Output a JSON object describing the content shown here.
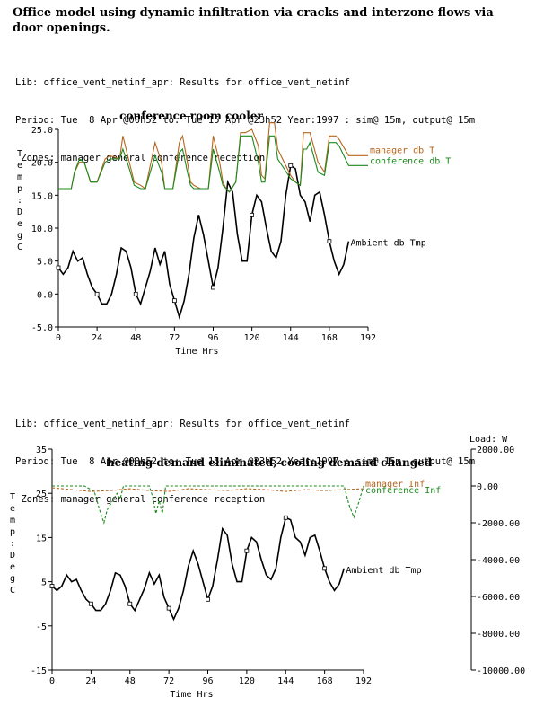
{
  "title": "Office model using dynamic infiltration via cracks and interzone flows via door openings.",
  "info_top": {
    "lib": "Lib: office_vent_netinf_apr: Results for office_vent_netinf",
    "period": "Period: Tue  8 Apr @00h52 to: Tue 15 Apr @23h52 Year:1997 : sim@ 15m, output@ 15m",
    "zones": " Zones: manager general conference reception"
  },
  "info_bottom": {
    "lib": "Lib: office_vent_netinf_apr: Results for office_vent_netinf",
    "period": "Period: Tue  8 Apr @00h52 to: Tue 15 Apr @23h52 Year:1997 : sim@ 15m, output@ 15m",
    "zones": " Zones: manager general conference reception"
  },
  "colors": {
    "ambient": "#000000",
    "manager": "#b5651d",
    "conference": "#1a8a1a",
    "general": "#1f3fbf",
    "reception": "#f0c040"
  },
  "chart_data": [
    {
      "type": "line",
      "title": "conference room cooler",
      "xlabel": "Time Hrs",
      "ylabel": "Temp: DegC",
      "xlim": [
        0,
        192
      ],
      "ylim": [
        -5,
        25
      ],
      "xticks": [
        "0",
        "24",
        "48",
        "72",
        "96",
        "120",
        "144",
        "168",
        "192"
      ],
      "yticks": [
        "-5.0",
        "0.0",
        "5.0",
        "10.0",
        "15.0",
        "20.0",
        "25.0"
      ],
      "series": [
        {
          "name": "Ambient db Tmp",
          "color": "#000000",
          "x": [
            0,
            3,
            6,
            9,
            12,
            15,
            18,
            21,
            24,
            27,
            30,
            33,
            36,
            39,
            42,
            45,
            48,
            51,
            54,
            57,
            60,
            63,
            66,
            69,
            72,
            75,
            78,
            81,
            84,
            87,
            90,
            93,
            96,
            99,
            102,
            105,
            108,
            111,
            114,
            117,
            120,
            123,
            126,
            129,
            132,
            135,
            138,
            141,
            144,
            147,
            150,
            153,
            156,
            159,
            162,
            165,
            168,
            171,
            174,
            177,
            180
          ],
          "y": [
            4,
            3,
            4,
            6.5,
            5,
            5.5,
            3,
            1,
            0,
            -1.5,
            -1.5,
            0,
            3,
            7,
            6.5,
            4,
            0,
            -1.5,
            1,
            3.5,
            7,
            4.5,
            6.5,
            1.5,
            -1,
            -3.5,
            -1,
            3,
            8.5,
            12,
            9,
            5,
            1,
            4,
            10,
            17,
            15.5,
            9,
            5,
            5,
            12,
            15,
            14,
            10,
            6.5,
            5.5,
            8,
            15,
            19.5,
            19,
            15,
            14,
            11,
            15,
            15.5,
            12,
            8,
            5,
            3,
            4.5,
            8
          ]
        },
        {
          "name": "manager db T",
          "color": "#b5651d",
          "x": [
            0,
            5,
            8,
            10,
            13,
            16,
            20,
            24,
            29,
            32,
            38,
            40,
            44,
            47,
            51,
            54,
            60,
            64,
            66,
            71,
            75,
            77,
            80,
            82,
            84,
            88,
            93,
            96,
            100,
            102,
            104,
            106,
            110,
            113,
            116,
            120,
            124,
            126,
            128,
            131,
            134,
            136,
            140,
            144,
            147,
            150,
            152,
            154,
            156,
            161,
            165,
            168,
            172,
            174,
            180,
            186,
            192
          ],
          "y": [
            16,
            16,
            16,
            18.5,
            20,
            20,
            17,
            17,
            20.5,
            21,
            20.5,
            24,
            20,
            17,
            16.5,
            16,
            23,
            20,
            16,
            16,
            23,
            24,
            20,
            17,
            16.5,
            16,
            16,
            24,
            20,
            17,
            16,
            15.5,
            17,
            24.5,
            24.5,
            25,
            22.5,
            18,
            17.5,
            26,
            26,
            22,
            20,
            18,
            17,
            16.5,
            24.5,
            24.5,
            24.5,
            20,
            18.5,
            24,
            24,
            23.5,
            21,
            21,
            21
          ]
        },
        {
          "name": "conference db T",
          "color": "#1a8a1a",
          "x": [
            0,
            5,
            8,
            10,
            13,
            16,
            20,
            24,
            29,
            32,
            38,
            40,
            44,
            47,
            51,
            54,
            60,
            64,
            66,
            71,
            75,
            77,
            80,
            82,
            84,
            88,
            93,
            96,
            100,
            102,
            104,
            106,
            110,
            113,
            116,
            120,
            124,
            126,
            128,
            131,
            134,
            136,
            140,
            144,
            147,
            150,
            152,
            154,
            156,
            161,
            165,
            168,
            172,
            174,
            180,
            186,
            192
          ],
          "y": [
            16,
            16,
            16,
            18.5,
            20.5,
            20,
            17,
            17,
            20,
            20.5,
            20.5,
            22,
            19,
            16.5,
            16,
            16,
            21,
            18.5,
            16,
            16,
            21.5,
            22,
            18.5,
            16.5,
            16,
            16,
            16,
            22,
            18.5,
            16.5,
            16,
            15.5,
            17,
            24,
            24,
            24,
            20,
            17,
            17,
            24,
            24,
            20.5,
            19,
            17.5,
            17,
            16.5,
            22,
            22,
            23,
            18.5,
            18,
            23,
            23,
            22.5,
            19.5,
            19.5,
            19.5
          ]
        }
      ]
    },
    {
      "type": "line",
      "title": "heating demand eliminated, cooling demand changed",
      "xlabel": "Time Hrs",
      "ylabel": "Temp: DegC",
      "y2label": "Load: W",
      "xlim": [
        0,
        192
      ],
      "ylim": [
        -15,
        35
      ],
      "y2lim": [
        -10000,
        2000
      ],
      "xticks": [
        "0",
        "24",
        "48",
        "72",
        "96",
        "120",
        "144",
        "168",
        "192"
      ],
      "yticks": [
        "-15",
        "-5",
        "5",
        "15",
        "25",
        "35"
      ],
      "y2ticks": [
        "-10000.00",
        "-8000.00",
        "-6000.00",
        "-4000.00",
        "-2000.00",
        "0.00",
        "2000.00"
      ],
      "series": [
        {
          "name": "Ambient db Tmp",
          "color": "#000000",
          "axis": "left",
          "x": [
            0,
            3,
            6,
            9,
            12,
            15,
            18,
            21,
            24,
            27,
            30,
            33,
            36,
            39,
            42,
            45,
            48,
            51,
            54,
            57,
            60,
            63,
            66,
            69,
            72,
            75,
            78,
            81,
            84,
            87,
            90,
            93,
            96,
            99,
            102,
            105,
            108,
            111,
            114,
            117,
            120,
            123,
            126,
            129,
            132,
            135,
            138,
            141,
            144,
            147,
            150,
            153,
            156,
            159,
            162,
            165,
            168,
            171,
            174,
            177,
            180
          ],
          "y": [
            4,
            3,
            4,
            6.5,
            5,
            5.5,
            3,
            1,
            0,
            -1.5,
            -1.5,
            0,
            3,
            7,
            6.5,
            4,
            0,
            -1.5,
            1,
            3.5,
            7,
            4.5,
            6.5,
            1.5,
            -1,
            -3.5,
            -1,
            3,
            8.5,
            12,
            9,
            5,
            1,
            4,
            10,
            17,
            15.5,
            9,
            5,
            5,
            12,
            15,
            14,
            10,
            6.5,
            5.5,
            8,
            15,
            19.5,
            19,
            15,
            14,
            11,
            15,
            15.5,
            12,
            8,
            5,
            3,
            4.5,
            8
          ]
        },
        {
          "name": "manager Inf",
          "color": "#b5651d",
          "axis": "right",
          "x": [
            0,
            12,
            24,
            36,
            48,
            60,
            72,
            84,
            96,
            108,
            120,
            132,
            144,
            156,
            168,
            180,
            192
          ],
          "y": [
            -100,
            -200,
            -300,
            -250,
            -150,
            -250,
            -300,
            -150,
            -200,
            -250,
            -150,
            -200,
            -300,
            -200,
            -250,
            -200,
            -150
          ]
        },
        {
          "name": "conference Inf",
          "color": "#1a8a1a",
          "axis": "right",
          "x": [
            0,
            20,
            26,
            30,
            32,
            34,
            40,
            42,
            44,
            60,
            62,
            64,
            66,
            68,
            70,
            72,
            80,
            100,
            120,
            140,
            160,
            180,
            183,
            186,
            189,
            192
          ],
          "y": [
            0,
            0,
            -300,
            -1500,
            -2000,
            -1300,
            -400,
            -700,
            0,
            0,
            -600,
            -1500,
            -800,
            -1500,
            0,
            0,
            0,
            0,
            0,
            0,
            0,
            0,
            -1000,
            -1700,
            -900,
            0
          ]
        }
      ]
    }
  ]
}
